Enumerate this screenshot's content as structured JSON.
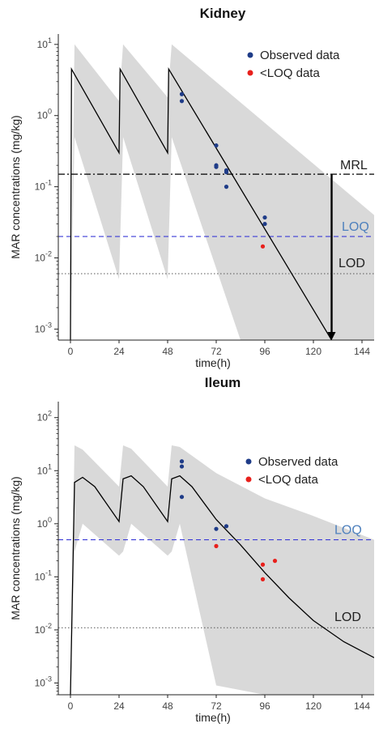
{
  "colors": {
    "band": "#d9d9d9",
    "observed": "#1f3c88",
    "below_loq": "#e8201c",
    "loq_line": "#3b3bd6",
    "loq_text": "#4f81bd",
    "line": "#000000"
  },
  "chart_data": [
    {
      "type": "line",
      "title": "Kidney",
      "xlabel": "time(h)",
      "ylabel": "MAR concentrations (mg/kg)",
      "xlim": [
        -6,
        150
      ],
      "ylim": [
        0.0007,
        14
      ],
      "yscale": "log",
      "xticks": [
        "0",
        "24",
        "48",
        "72",
        "96",
        "120",
        "144"
      ],
      "yticks": [
        {
          "value": 0.001,
          "mant": "10",
          "exp": "-3"
        },
        {
          "value": 0.01,
          "mant": "10",
          "exp": "-2"
        },
        {
          "value": 0.1,
          "mant": "10",
          "exp": "-1"
        },
        {
          "value": 1,
          "mant": "10",
          "exp": "0"
        },
        {
          "value": 10,
          "mant": "10",
          "exp": "1"
        }
      ],
      "legend": {
        "position": "top-right",
        "entries": [
          {
            "label": "Observed data",
            "color": "#1f3c88"
          },
          {
            "label": "<LOQ data",
            "color": "#e8201c"
          }
        ]
      },
      "reference_lines": [
        {
          "label": "MRL",
          "value": 0.15,
          "style": "dashdot",
          "color": "#000000",
          "text_color": "#222222"
        },
        {
          "label": "LOQ",
          "value": 0.02,
          "style": "dashed",
          "color": "#3b3bd6",
          "text_color": "#4f81bd"
        },
        {
          "label": "LOD",
          "value": 0.006,
          "style": "dotted",
          "color": "#555555",
          "text_color": "#222222"
        }
      ],
      "withdrawal_arrow": {
        "x": 129,
        "from": 0.15,
        "to": 0.0007
      },
      "simulated_median": {
        "x": [
          0,
          0.5,
          24,
          24.5,
          48,
          48.5,
          129
        ],
        "y": [
          0.0007,
          4.5,
          0.3,
          4.5,
          0.3,
          4.5,
          0.0007
        ]
      },
      "band_upper": {
        "x": [
          0,
          2,
          24,
          26,
          48,
          50,
          150
        ],
        "y": [
          0.0007,
          10,
          1.6,
          10,
          1.8,
          10,
          0.04
        ]
      },
      "band_lower": {
        "x": [
          150,
          84,
          50,
          48,
          26,
          24,
          2,
          0
        ],
        "y": [
          0.0007,
          0.0007,
          0.5,
          0.005,
          0.5,
          0.005,
          0.5,
          0.0007
        ]
      },
      "observed": {
        "x": [
          55,
          55,
          72,
          72,
          72,
          77,
          77,
          77,
          96,
          96
        ],
        "y": [
          2.0,
          1.6,
          0.38,
          0.2,
          0.19,
          0.17,
          0.16,
          0.1,
          0.037,
          0.03
        ]
      },
      "below_loq": {
        "x": [
          95
        ],
        "y": [
          0.0145
        ]
      }
    },
    {
      "type": "line",
      "title": "Ileum",
      "xlabel": "time(h)",
      "ylabel": "MAR concentrations (mg/kg)",
      "xlim": [
        -6,
        150
      ],
      "ylim": [
        0.0006,
        200
      ],
      "yscale": "log",
      "xticks": [
        "0",
        "24",
        "48",
        "72",
        "96",
        "120",
        "144"
      ],
      "yticks": [
        {
          "value": 0.001,
          "mant": "10",
          "exp": "-3"
        },
        {
          "value": 0.01,
          "mant": "10",
          "exp": "-2"
        },
        {
          "value": 0.1,
          "mant": "10",
          "exp": "-1"
        },
        {
          "value": 1,
          "mant": "10",
          "exp": "0"
        },
        {
          "value": 10,
          "mant": "10",
          "exp": "1"
        },
        {
          "value": 100,
          "mant": "10",
          "exp": "2"
        }
      ],
      "legend": {
        "position": "top-right",
        "entries": [
          {
            "label": "Observed data",
            "color": "#1f3c88"
          },
          {
            "label": "<LOQ data",
            "color": "#e8201c"
          }
        ]
      },
      "reference_lines": [
        {
          "label": "LOQ",
          "value": 0.5,
          "style": "dashed",
          "color": "#3b3bd6",
          "text_color": "#4f81bd"
        },
        {
          "label": "LOD",
          "value": 0.011,
          "style": "dotted",
          "color": "#555555",
          "text_color": "#222222"
        }
      ],
      "simulated_median": {
        "x": [
          0,
          2,
          6,
          12,
          24,
          26,
          30,
          36,
          48,
          50,
          54,
          60,
          72,
          84,
          96,
          108,
          120,
          135,
          150
        ],
        "y": [
          0.0006,
          6,
          7.5,
          5,
          1.1,
          7,
          8,
          5,
          1.1,
          7,
          8,
          5,
          1.2,
          0.4,
          0.12,
          0.04,
          0.015,
          0.006,
          0.003
        ]
      },
      "band_upper": {
        "x": [
          0,
          2,
          6,
          24,
          26,
          30,
          48,
          50,
          54,
          72,
          96,
          120,
          150
        ],
        "y": [
          0.0006,
          30,
          25,
          5,
          30,
          26,
          5,
          30,
          28,
          9,
          3,
          1.4,
          0.5
        ]
      },
      "band_lower": {
        "x": [
          150,
          120,
          96,
          72,
          54,
          50,
          48,
          30,
          26,
          24,
          6,
          2,
          0
        ],
        "y": [
          0.0006,
          0.0006,
          0.0006,
          0.0009,
          1,
          0.3,
          0.25,
          1,
          0.3,
          0.25,
          1,
          0.3,
          0.0006
        ]
      },
      "observed": {
        "x": [
          55,
          55,
          55,
          72,
          77
        ],
        "y": [
          15,
          12,
          3.2,
          0.8,
          0.9
        ]
      },
      "below_loq": {
        "x": [
          72,
          95,
          95,
          101
        ],
        "y": [
          0.38,
          0.17,
          0.09,
          0.2
        ]
      }
    }
  ]
}
